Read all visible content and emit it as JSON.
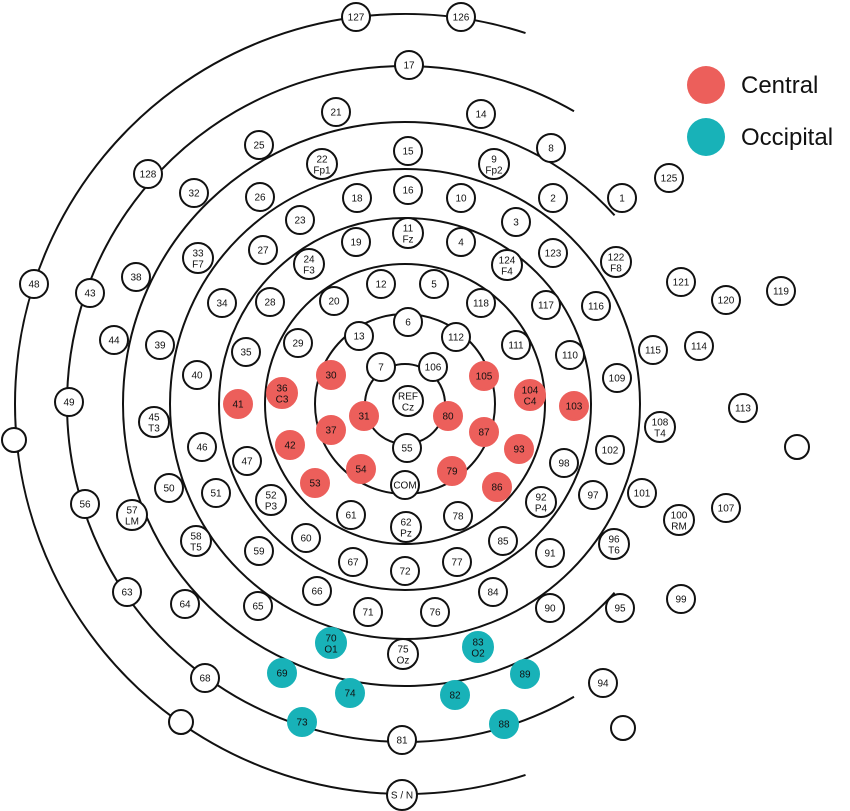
{
  "colors": {
    "central": "#ec5f5b",
    "occipital": "#18b2b8",
    "outline": "#111111",
    "background": "#ffffff"
  },
  "legend": [
    {
      "label": "Central",
      "color": "#ec5f5b"
    },
    {
      "label": "Occipital",
      "color": "#18b2b8"
    }
  ],
  "electrodes": [
    {
      "id": "127",
      "l": [
        "127"
      ]
    },
    {
      "id": "126",
      "l": [
        "126"
      ]
    },
    {
      "id": "17",
      "l": [
        "17"
      ]
    },
    {
      "id": "21",
      "l": [
        "21"
      ]
    },
    {
      "id": "14",
      "l": [
        "14"
      ]
    },
    {
      "id": "25",
      "l": [
        "25"
      ]
    },
    {
      "id": "8",
      "l": [
        "8"
      ]
    },
    {
      "id": "22",
      "l": [
        "22",
        "Fp1"
      ]
    },
    {
      "id": "15",
      "l": [
        "15"
      ]
    },
    {
      "id": "9",
      "l": [
        "9",
        "Fp2"
      ]
    },
    {
      "id": "128",
      "l": [
        "128"
      ]
    },
    {
      "id": "125",
      "l": [
        "125"
      ]
    },
    {
      "id": "32",
      "l": [
        "32"
      ]
    },
    {
      "id": "26",
      "l": [
        "26"
      ]
    },
    {
      "id": "18",
      "l": [
        "18"
      ]
    },
    {
      "id": "16",
      "l": [
        "16"
      ]
    },
    {
      "id": "10",
      "l": [
        "10"
      ]
    },
    {
      "id": "2",
      "l": [
        "2"
      ]
    },
    {
      "id": "1",
      "l": [
        "1"
      ]
    },
    {
      "id": "23",
      "l": [
        "23"
      ]
    },
    {
      "id": "3",
      "l": [
        "3"
      ]
    },
    {
      "id": "11",
      "l": [
        "11",
        "Fz"
      ]
    },
    {
      "id": "19",
      "l": [
        "19"
      ]
    },
    {
      "id": "4",
      "l": [
        "4"
      ]
    },
    {
      "id": "27",
      "l": [
        "27"
      ]
    },
    {
      "id": "33",
      "l": [
        "33",
        "F7"
      ]
    },
    {
      "id": "24",
      "l": [
        "24",
        "F3"
      ]
    },
    {
      "id": "124",
      "l": [
        "124",
        "F4"
      ]
    },
    {
      "id": "123",
      "l": [
        "123"
      ]
    },
    {
      "id": "122",
      "l": [
        "122",
        "F8"
      ]
    },
    {
      "id": "38",
      "l": [
        "38"
      ]
    },
    {
      "id": "121",
      "l": [
        "121"
      ]
    },
    {
      "id": "48",
      "l": [
        "48"
      ]
    },
    {
      "id": "43",
      "l": [
        "43"
      ]
    },
    {
      "id": "120",
      "l": [
        "120"
      ]
    },
    {
      "id": "119",
      "l": [
        "119"
      ]
    },
    {
      "id": "34",
      "l": [
        "34"
      ]
    },
    {
      "id": "28",
      "l": [
        "28"
      ]
    },
    {
      "id": "20",
      "l": [
        "20"
      ]
    },
    {
      "id": "12",
      "l": [
        "12"
      ]
    },
    {
      "id": "5",
      "l": [
        "5"
      ]
    },
    {
      "id": "118",
      "l": [
        "118"
      ]
    },
    {
      "id": "117",
      "l": [
        "117"
      ]
    },
    {
      "id": "116",
      "l": [
        "116"
      ]
    },
    {
      "id": "44",
      "l": [
        "44"
      ]
    },
    {
      "id": "114",
      "l": [
        "114"
      ]
    },
    {
      "id": "39",
      "l": [
        "39"
      ]
    },
    {
      "id": "6",
      "l": [
        "6"
      ]
    },
    {
      "id": "29",
      "l": [
        "29"
      ]
    },
    {
      "id": "13",
      "l": [
        "13"
      ]
    },
    {
      "id": "112",
      "l": [
        "112"
      ]
    },
    {
      "id": "111",
      "l": [
        "111"
      ]
    },
    {
      "id": "115",
      "l": [
        "115"
      ]
    },
    {
      "id": "35",
      "l": [
        "35"
      ]
    },
    {
      "id": "110",
      "l": [
        "110"
      ]
    },
    {
      "id": "40",
      "l": [
        "40"
      ]
    },
    {
      "id": "30",
      "l": [
        "30"
      ],
      "g": "central"
    },
    {
      "id": "7",
      "l": [
        "7"
      ]
    },
    {
      "id": "106",
      "l": [
        "106"
      ]
    },
    {
      "id": "105",
      "l": [
        "105"
      ],
      "g": "central"
    },
    {
      "id": "109",
      "l": [
        "109"
      ]
    },
    {
      "id": "41",
      "l": [
        "41"
      ],
      "g": "central"
    },
    {
      "id": "36",
      "l": [
        "36",
        "C3"
      ],
      "g": "central"
    },
    {
      "id": "REF",
      "l": [
        "REF",
        "Cz"
      ]
    },
    {
      "id": "104",
      "l": [
        "104",
        "C4"
      ],
      "g": "central"
    },
    {
      "id": "103",
      "l": [
        "103"
      ],
      "g": "central"
    },
    {
      "id": "49",
      "l": [
        "49"
      ]
    },
    {
      "id": "113",
      "l": [
        "113"
      ]
    },
    {
      "id": "45",
      "l": [
        "45",
        "T3"
      ]
    },
    {
      "id": "31",
      "l": [
        "31"
      ],
      "g": "central"
    },
    {
      "id": "80",
      "l": [
        "80"
      ],
      "g": "central"
    },
    {
      "id": "108",
      "l": [
        "108",
        "T4"
      ]
    },
    {
      "id": "37",
      "l": [
        "37"
      ],
      "g": "central"
    },
    {
      "id": "87",
      "l": [
        "87"
      ],
      "g": "central"
    },
    {
      "id": "46",
      "l": [
        "46"
      ]
    },
    {
      "id": "42",
      "l": [
        "42"
      ],
      "g": "central"
    },
    {
      "id": "55",
      "l": [
        "55"
      ]
    },
    {
      "id": "93",
      "l": [
        "93"
      ],
      "g": "central"
    },
    {
      "id": "102",
      "l": [
        "102"
      ]
    },
    {
      "id": "47",
      "l": [
        "47"
      ]
    },
    {
      "id": "54",
      "l": [
        "54"
      ],
      "g": "central"
    },
    {
      "id": "79",
      "l": [
        "79"
      ],
      "g": "central"
    },
    {
      "id": "98",
      "l": [
        "98"
      ]
    },
    {
      "id": "53",
      "l": [
        "53"
      ],
      "g": "central"
    },
    {
      "id": "COM",
      "l": [
        "COM"
      ]
    },
    {
      "id": "86",
      "l": [
        "86"
      ],
      "g": "central"
    },
    {
      "id": "50",
      "l": [
        "50"
      ]
    },
    {
      "id": "51",
      "l": [
        "51"
      ]
    },
    {
      "id": "101",
      "l": [
        "101"
      ]
    },
    {
      "id": "97",
      "l": [
        "97"
      ]
    },
    {
      "id": "52",
      "l": [
        "52",
        "P3"
      ]
    },
    {
      "id": "92",
      "l": [
        "92",
        "P4"
      ]
    },
    {
      "id": "56",
      "l": [
        "56"
      ]
    },
    {
      "id": "107",
      "l": [
        "107"
      ]
    },
    {
      "id": "57",
      "l": [
        "57",
        "LM"
      ]
    },
    {
      "id": "61",
      "l": [
        "61"
      ]
    },
    {
      "id": "78",
      "l": [
        "78"
      ]
    },
    {
      "id": "100",
      "l": [
        "100",
        "RM"
      ]
    },
    {
      "id": "62",
      "l": [
        "62",
        "Pz"
      ]
    },
    {
      "id": "60",
      "l": [
        "60"
      ]
    },
    {
      "id": "85",
      "l": [
        "85"
      ]
    },
    {
      "id": "58",
      "l": [
        "58",
        "T5"
      ]
    },
    {
      "id": "96",
      "l": [
        "96",
        "T6"
      ]
    },
    {
      "id": "59",
      "l": [
        "59"
      ]
    },
    {
      "id": "67",
      "l": [
        "67"
      ]
    },
    {
      "id": "77",
      "l": [
        "77"
      ]
    },
    {
      "id": "91",
      "l": [
        "91"
      ]
    },
    {
      "id": "72",
      "l": [
        "72"
      ]
    },
    {
      "id": "63",
      "l": [
        "63"
      ]
    },
    {
      "id": "66",
      "l": [
        "66"
      ]
    },
    {
      "id": "84",
      "l": [
        "84"
      ]
    },
    {
      "id": "99",
      "l": [
        "99"
      ]
    },
    {
      "id": "64",
      "l": [
        "64"
      ]
    },
    {
      "id": "65",
      "l": [
        "65"
      ]
    },
    {
      "id": "71",
      "l": [
        "71"
      ]
    },
    {
      "id": "76",
      "l": [
        "76"
      ]
    },
    {
      "id": "90",
      "l": [
        "90"
      ]
    },
    {
      "id": "95",
      "l": [
        "95"
      ]
    },
    {
      "id": "70",
      "l": [
        "70",
        "O1"
      ],
      "g": "occipital"
    },
    {
      "id": "83",
      "l": [
        "83",
        "O2"
      ],
      "g": "occipital"
    },
    {
      "id": "75",
      "l": [
        "75",
        "Oz"
      ]
    },
    {
      "id": "69",
      "l": [
        "69"
      ],
      "g": "occipital"
    },
    {
      "id": "89",
      "l": [
        "89"
      ],
      "g": "occipital"
    },
    {
      "id": "68",
      "l": [
        "68"
      ]
    },
    {
      "id": "74",
      "l": [
        "74"
      ],
      "g": "occipital"
    },
    {
      "id": "82",
      "l": [
        "82"
      ],
      "g": "occipital"
    },
    {
      "id": "94",
      "l": [
        "94"
      ]
    },
    {
      "id": "73",
      "l": [
        "73"
      ],
      "g": "occipital"
    },
    {
      "id": "88",
      "l": [
        "88"
      ],
      "g": "occipital"
    },
    {
      "id": "81",
      "l": [
        "81"
      ]
    },
    {
      "id": "SN",
      "l": [
        "S / N"
      ]
    },
    {
      "id": "blank-left-1",
      "l": []
    },
    {
      "id": "blank-right-1",
      "l": []
    },
    {
      "id": "blank-left-2",
      "l": []
    },
    {
      "id": "blank-right-2",
      "l": []
    }
  ]
}
